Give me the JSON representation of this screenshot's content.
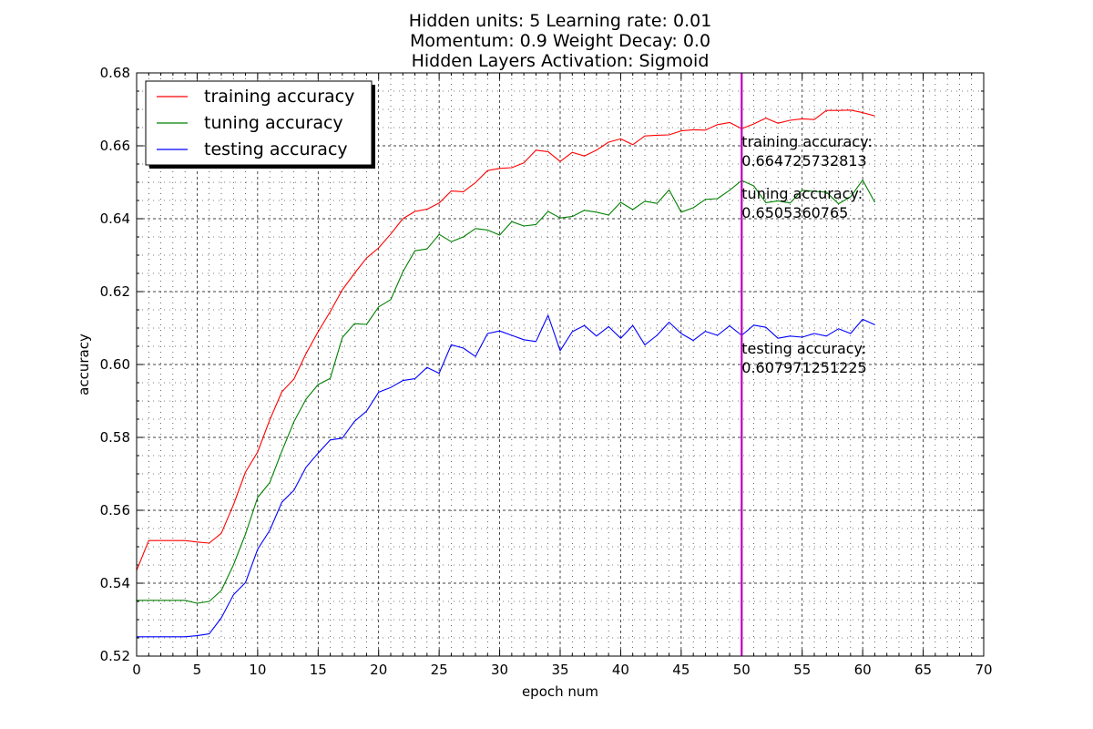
{
  "chart_data": {
    "type": "line",
    "title_lines": [
      "Hidden units: 5 Learning rate: 0.01",
      "Momentum: 0.9 Weight Decay: 0.0",
      "Hidden Layers Activation: Sigmoid"
    ],
    "xlabel": "epoch num",
    "ylabel": "accuracy",
    "xlim": [
      0,
      70
    ],
    "ylim": [
      0.52,
      0.68
    ],
    "x_major_ticks": [
      0,
      5,
      10,
      15,
      20,
      25,
      30,
      35,
      40,
      45,
      50,
      55,
      60,
      65,
      70
    ],
    "x_tick_labels": [
      "0",
      "5",
      "10",
      "15",
      "20",
      "25",
      "30",
      "35",
      "40",
      "45",
      "50",
      "55",
      "60",
      "65",
      "70"
    ],
    "y_major_ticks": [
      0.52,
      0.54,
      0.56,
      0.58,
      0.6,
      0.62,
      0.64,
      0.66,
      0.68
    ],
    "y_tick_labels": [
      "0.52",
      "0.54",
      "0.56",
      "0.58",
      "0.60",
      "0.62",
      "0.64",
      "0.66",
      "0.68"
    ],
    "grid": true,
    "legend_position": "top-left",
    "vline": {
      "x": 50,
      "color": "#bf00bf"
    },
    "series": [
      {
        "name": "training accuracy",
        "color": "#ff0000",
        "x": [
          0,
          1,
          2,
          3,
          4,
          5,
          6,
          7,
          8,
          9,
          10,
          11,
          12,
          13,
          14,
          15,
          16,
          17,
          18,
          19,
          20,
          21,
          22,
          23,
          24,
          25,
          26,
          27,
          28,
          29,
          30,
          31,
          32,
          33,
          34,
          35,
          36,
          37,
          38,
          39,
          40,
          41,
          42,
          43,
          44,
          45,
          46,
          47,
          48,
          49,
          50,
          51,
          52,
          53,
          54,
          55,
          56,
          57,
          58,
          59,
          60,
          61
        ],
        "values": [
          0.5435,
          0.5517,
          0.5517,
          0.5517,
          0.5517,
          0.5513,
          0.551,
          0.5537,
          0.5615,
          0.5705,
          0.576,
          0.5848,
          0.5925,
          0.596,
          0.603,
          0.609,
          0.6145,
          0.6205,
          0.625,
          0.6292,
          0.632,
          0.6358,
          0.64,
          0.642,
          0.6426,
          0.6443,
          0.6476,
          0.6474,
          0.6499,
          0.6532,
          0.6538,
          0.654,
          0.6553,
          0.6588,
          0.6584,
          0.6557,
          0.6582,
          0.6572,
          0.6588,
          0.661,
          0.6619,
          0.6603,
          0.6627,
          0.6629,
          0.663,
          0.6641,
          0.6644,
          0.6643,
          0.6658,
          0.6664,
          0.6647,
          0.666,
          0.6676,
          0.6662,
          0.667,
          0.6674,
          0.6672,
          0.6697,
          0.6697,
          0.6698,
          0.6691,
          0.6682
        ]
      },
      {
        "name": "tuning accuracy",
        "color": "#008000",
        "x": [
          0,
          1,
          2,
          3,
          4,
          5,
          6,
          7,
          8,
          9,
          10,
          11,
          12,
          13,
          14,
          15,
          16,
          17,
          18,
          19,
          20,
          21,
          22,
          23,
          24,
          25,
          26,
          27,
          28,
          29,
          30,
          31,
          32,
          33,
          34,
          35,
          36,
          37,
          38,
          39,
          40,
          41,
          42,
          43,
          44,
          45,
          46,
          47,
          48,
          49,
          50,
          51,
          52,
          53,
          54,
          55,
          56,
          57,
          58,
          59,
          60,
          61
        ],
        "values": [
          0.5353,
          0.5353,
          0.5353,
          0.5353,
          0.5353,
          0.5345,
          0.535,
          0.538,
          0.545,
          0.5535,
          0.5635,
          0.5676,
          0.5762,
          0.5843,
          0.5905,
          0.5945,
          0.5962,
          0.6074,
          0.6112,
          0.611,
          0.6158,
          0.6178,
          0.6254,
          0.6312,
          0.6317,
          0.6357,
          0.6337,
          0.635,
          0.6373,
          0.6369,
          0.6355,
          0.6392,
          0.638,
          0.6384,
          0.642,
          0.6402,
          0.6406,
          0.6423,
          0.6418,
          0.641,
          0.6445,
          0.6425,
          0.6448,
          0.6442,
          0.6479,
          0.6418,
          0.643,
          0.6453,
          0.6455,
          0.6478,
          0.6505,
          0.649,
          0.6444,
          0.6449,
          0.6443,
          0.6478,
          0.6475,
          0.6473,
          0.6441,
          0.646,
          0.6506,
          0.6445
        ]
      },
      {
        "name": "testing accuracy",
        "color": "#0000ff",
        "x": [
          0,
          1,
          2,
          3,
          4,
          5,
          6,
          7,
          8,
          9,
          10,
          11,
          12,
          13,
          14,
          15,
          16,
          17,
          18,
          19,
          20,
          21,
          22,
          23,
          24,
          25,
          26,
          27,
          28,
          29,
          30,
          31,
          32,
          33,
          34,
          35,
          36,
          37,
          38,
          39,
          40,
          41,
          42,
          43,
          44,
          45,
          46,
          47,
          48,
          49,
          50,
          51,
          52,
          53,
          54,
          55,
          56,
          57,
          58,
          59,
          60,
          61
        ],
        "values": [
          0.5253,
          0.5253,
          0.5253,
          0.5253,
          0.5253,
          0.5256,
          0.5261,
          0.5305,
          0.5368,
          0.5402,
          0.5493,
          0.5545,
          0.5622,
          0.5655,
          0.5718,
          0.5757,
          0.5793,
          0.5798,
          0.5844,
          0.5872,
          0.5924,
          0.5937,
          0.5956,
          0.5961,
          0.5992,
          0.5976,
          0.6054,
          0.6045,
          0.6022,
          0.6085,
          0.6092,
          0.608,
          0.6068,
          0.6063,
          0.6135,
          0.6038,
          0.609,
          0.6107,
          0.6078,
          0.6104,
          0.6072,
          0.6107,
          0.6054,
          0.608,
          0.6116,
          0.6085,
          0.6066,
          0.6091,
          0.608,
          0.6106,
          0.608,
          0.6108,
          0.6102,
          0.6072,
          0.6078,
          0.6075,
          0.6085,
          0.6078,
          0.6098,
          0.6085,
          0.6124,
          0.6109
        ]
      }
    ],
    "annotations": [
      {
        "label": "training accuracy:",
        "value": "0.664725732813",
        "x": 50,
        "y": 0.6597
      },
      {
        "label": "tuning accuracy:",
        "value": "0.6505360765",
        "x": 50,
        "y": 0.6455
      },
      {
        "label": "testing accuracy:",
        "value": "0.607971251225",
        "x": 50,
        "y": 0.603
      }
    ]
  }
}
